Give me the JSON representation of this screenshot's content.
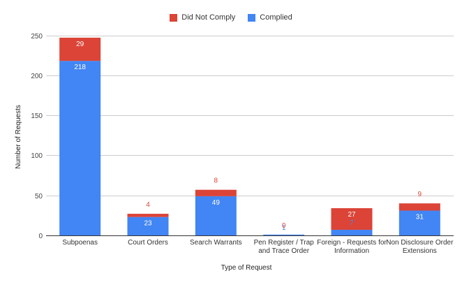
{
  "chart_data": {
    "type": "bar",
    "stacked": true,
    "xlabel": "Type of Request",
    "ylabel": "Number of Requests",
    "ylim": [
      0,
      250
    ],
    "yticks": [
      0,
      50,
      100,
      150,
      200,
      250
    ],
    "grid": true,
    "legend_position": "top",
    "categories": [
      [
        "Subpoenas"
      ],
      [
        "Court Orders"
      ],
      [
        "Search Warrants"
      ],
      [
        "Pen Register / Trap",
        "and Trace Order"
      ],
      [
        "Foreign - Requests for",
        "Information"
      ],
      [
        "Non Disclosure Order",
        "Extensions"
      ]
    ],
    "series": [
      {
        "name": "Complied",
        "color": "#4285f4",
        "values": [
          218,
          23,
          49,
          1,
          7,
          31
        ]
      },
      {
        "name": "Did Not Comply",
        "color": "#db4437",
        "values": [
          29,
          4,
          8,
          0,
          27,
          9
        ]
      }
    ]
  },
  "legend": [
    {
      "label": "Did Not Comply",
      "color": "#db4437"
    },
    {
      "label": "Complied",
      "color": "#4285f4"
    }
  ]
}
